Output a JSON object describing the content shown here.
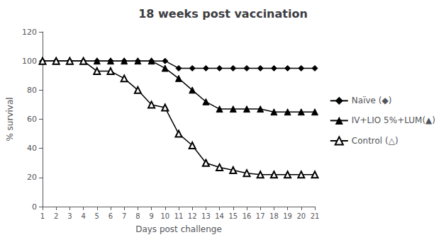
{
  "chart_data": {
    "type": "line",
    "title": "18 weeks post vaccination",
    "x_label": "Days post challenge",
    "y_label": "% survival",
    "x": [
      1,
      2,
      3,
      4,
      5,
      6,
      7,
      8,
      9,
      10,
      11,
      12,
      13,
      14,
      15,
      16,
      17,
      18,
      19,
      20,
      21
    ],
    "series": [
      {
        "name": "Naïve (◆)",
        "color": "#000000",
        "marker": "diamond",
        "values": [
          100,
          100,
          100,
          100,
          100,
          100,
          100,
          100,
          100,
          100,
          95,
          95,
          95,
          95,
          95,
          95,
          95,
          95,
          95,
          95,
          95
        ]
      },
      {
        "name": "IV+LIO 5%+LUM(▲)",
        "color": "#000000",
        "marker": "triangle",
        "values": [
          100,
          100,
          100,
          100,
          100,
          100,
          100,
          100,
          100,
          95,
          88,
          80,
          72,
          67,
          67,
          67,
          67,
          65,
          65,
          65,
          65
        ]
      },
      {
        "name": "Control (△)",
        "color": "#000000",
        "marker": "triangle_open",
        "values": [
          100,
          100,
          100,
          100,
          93,
          93,
          88,
          80,
          70,
          68,
          50,
          42,
          30,
          27,
          25,
          23,
          22,
          22,
          22,
          22,
          22
        ]
      }
    ],
    "xlim": [
      1,
      21
    ],
    "xticks": [
      1,
      2,
      3,
      4,
      5,
      6,
      7,
      8,
      9,
      10,
      11,
      12,
      13,
      14,
      15,
      16,
      17,
      18,
      19,
      20,
      21
    ],
    "ylim": [
      0,
      120
    ],
    "yticks": [
      0,
      20,
      40,
      60,
      80,
      100,
      120
    ],
    "grid": false,
    "legend": "right"
  }
}
